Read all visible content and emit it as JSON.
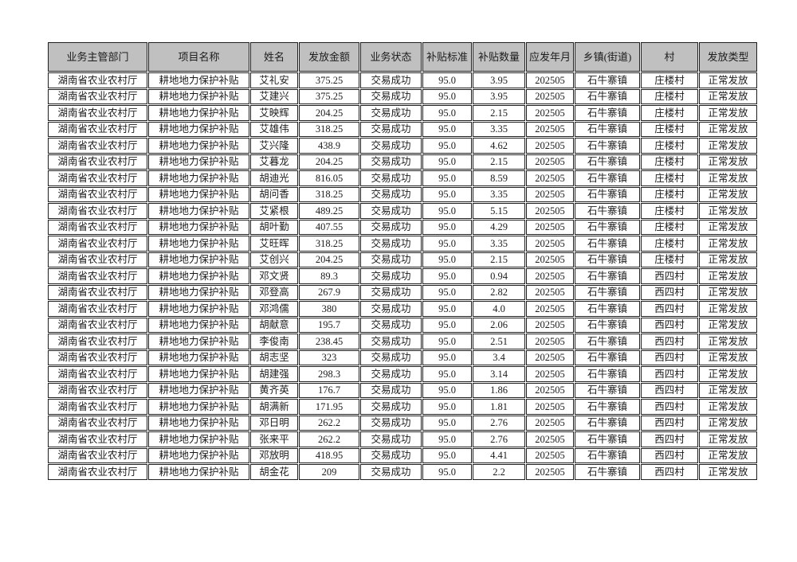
{
  "table": {
    "columns": [
      "业务主管部门",
      "项目名称",
      "姓名",
      "发放金额",
      "业务状态",
      "补贴标准",
      "补贴数量",
      "应发年月",
      "乡镇(街道)",
      "村",
      "发放类型"
    ],
    "rows": [
      [
        "湖南省农业农村厅",
        "耕地地力保护补贴",
        "艾礼安",
        "375.25",
        "交易成功",
        "95.0",
        "3.95",
        "202505",
        "石牛寨镇",
        "庄楼村",
        "正常发放"
      ],
      [
        "湖南省农业农村厅",
        "耕地地力保护补贴",
        "艾建兴",
        "375.25",
        "交易成功",
        "95.0",
        "3.95",
        "202505",
        "石牛寨镇",
        "庄楼村",
        "正常发放"
      ],
      [
        "湖南省农业农村厅",
        "耕地地力保护补贴",
        "艾映辉",
        "204.25",
        "交易成功",
        "95.0",
        "2.15",
        "202505",
        "石牛寨镇",
        "庄楼村",
        "正常发放"
      ],
      [
        "湖南省农业农村厅",
        "耕地地力保护补贴",
        "艾雄伟",
        "318.25",
        "交易成功",
        "95.0",
        "3.35",
        "202505",
        "石牛寨镇",
        "庄楼村",
        "正常发放"
      ],
      [
        "湖南省农业农村厅",
        "耕地地力保护补贴",
        "艾兴隆",
        "438.9",
        "交易成功",
        "95.0",
        "4.62",
        "202505",
        "石牛寨镇",
        "庄楼村",
        "正常发放"
      ],
      [
        "湖南省农业农村厅",
        "耕地地力保护补贴",
        "艾暮龙",
        "204.25",
        "交易成功",
        "95.0",
        "2.15",
        "202505",
        "石牛寨镇",
        "庄楼村",
        "正常发放"
      ],
      [
        "湖南省农业农村厅",
        "耕地地力保护补贴",
        "胡迪光",
        "816.05",
        "交易成功",
        "95.0",
        "8.59",
        "202505",
        "石牛寨镇",
        "庄楼村",
        "正常发放"
      ],
      [
        "湖南省农业农村厅",
        "耕地地力保护补贴",
        "胡问香",
        "318.25",
        "交易成功",
        "95.0",
        "3.35",
        "202505",
        "石牛寨镇",
        "庄楼村",
        "正常发放"
      ],
      [
        "湖南省农业农村厅",
        "耕地地力保护补贴",
        "艾紧根",
        "489.25",
        "交易成功",
        "95.0",
        "5.15",
        "202505",
        "石牛寨镇",
        "庄楼村",
        "正常发放"
      ],
      [
        "湖南省农业农村厅",
        "耕地地力保护补贴",
        "胡叶勤",
        "407.55",
        "交易成功",
        "95.0",
        "4.29",
        "202505",
        "石牛寨镇",
        "庄楼村",
        "正常发放"
      ],
      [
        "湖南省农业农村厅",
        "耕地地力保护补贴",
        "艾旺晖",
        "318.25",
        "交易成功",
        "95.0",
        "3.35",
        "202505",
        "石牛寨镇",
        "庄楼村",
        "正常发放"
      ],
      [
        "湖南省农业农村厅",
        "耕地地力保护补贴",
        "艾创兴",
        "204.25",
        "交易成功",
        "95.0",
        "2.15",
        "202505",
        "石牛寨镇",
        "庄楼村",
        "正常发放"
      ],
      [
        "湖南省农业农村厅",
        "耕地地力保护补贴",
        "邓文贤",
        "89.3",
        "交易成功",
        "95.0",
        "0.94",
        "202505",
        "石牛寨镇",
        "西四村",
        "正常发放"
      ],
      [
        "湖南省农业农村厅",
        "耕地地力保护补贴",
        "邓登高",
        "267.9",
        "交易成功",
        "95.0",
        "2.82",
        "202505",
        "石牛寨镇",
        "西四村",
        "正常发放"
      ],
      [
        "湖南省农业农村厅",
        "耕地地力保护补贴",
        "邓鸿儒",
        "380",
        "交易成功",
        "95.0",
        "4.0",
        "202505",
        "石牛寨镇",
        "西四村",
        "正常发放"
      ],
      [
        "湖南省农业农村厅",
        "耕地地力保护补贴",
        "胡献意",
        "195.7",
        "交易成功",
        "95.0",
        "2.06",
        "202505",
        "石牛寨镇",
        "西四村",
        "正常发放"
      ],
      [
        "湖南省农业农村厅",
        "耕地地力保护补贴",
        "李俊南",
        "238.45",
        "交易成功",
        "95.0",
        "2.51",
        "202505",
        "石牛寨镇",
        "西四村",
        "正常发放"
      ],
      [
        "湖南省农业农村厅",
        "耕地地力保护补贴",
        "胡志坚",
        "323",
        "交易成功",
        "95.0",
        "3.4",
        "202505",
        "石牛寨镇",
        "西四村",
        "正常发放"
      ],
      [
        "湖南省农业农村厅",
        "耕地地力保护补贴",
        "胡建强",
        "298.3",
        "交易成功",
        "95.0",
        "3.14",
        "202505",
        "石牛寨镇",
        "西四村",
        "正常发放"
      ],
      [
        "湖南省农业农村厅",
        "耕地地力保护补贴",
        "黄齐英",
        "176.7",
        "交易成功",
        "95.0",
        "1.86",
        "202505",
        "石牛寨镇",
        "西四村",
        "正常发放"
      ],
      [
        "湖南省农业农村厅",
        "耕地地力保护补贴",
        "胡满新",
        "171.95",
        "交易成功",
        "95.0",
        "1.81",
        "202505",
        "石牛寨镇",
        "西四村",
        "正常发放"
      ],
      [
        "湖南省农业农村厅",
        "耕地地力保护补贴",
        "邓日明",
        "262.2",
        "交易成功",
        "95.0",
        "2.76",
        "202505",
        "石牛寨镇",
        "西四村",
        "正常发放"
      ],
      [
        "湖南省农业农村厅",
        "耕地地力保护补贴",
        "张来平",
        "262.2",
        "交易成功",
        "95.0",
        "2.76",
        "202505",
        "石牛寨镇",
        "西四村",
        "正常发放"
      ],
      [
        "湖南省农业农村厅",
        "耕地地力保护补贴",
        "邓放明",
        "418.95",
        "交易成功",
        "95.0",
        "4.41",
        "202505",
        "石牛寨镇",
        "西四村",
        "正常发放"
      ],
      [
        "湖南省农业农村厅",
        "耕地地力保护补贴",
        "胡金花",
        "209",
        "交易成功",
        "95.0",
        "2.2",
        "202505",
        "石牛寨镇",
        "西四村",
        "正常发放"
      ]
    ],
    "colors": {
      "header_bg": "#c0c0c0",
      "border": "#1f1f1f",
      "text": "#1c1c1c",
      "page_bg": "#ffffff"
    }
  }
}
